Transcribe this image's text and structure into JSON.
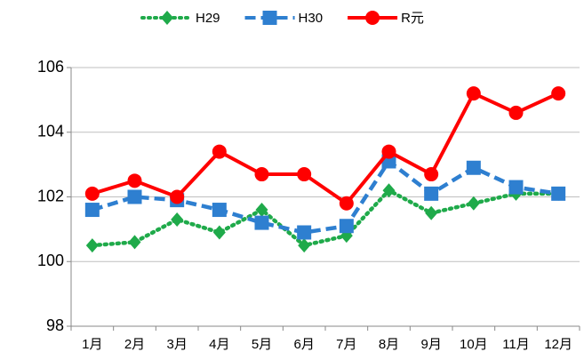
{
  "chart_data": {
    "type": "line",
    "categories": [
      "1月",
      "2月",
      "3月",
      "4月",
      "5月",
      "6月",
      "7月",
      "8月",
      "9月",
      "10月",
      "11月",
      "12月"
    ],
    "series": [
      {
        "name": "H29",
        "color": "#1faa4a",
        "marker": "diamond",
        "line_style": "dotted",
        "values": [
          100.5,
          100.6,
          101.3,
          100.9,
          101.6,
          100.5,
          100.8,
          102.2,
          101.5,
          101.8,
          102.1,
          102.1
        ]
      },
      {
        "name": "H30",
        "color": "#2e7fd0",
        "marker": "square",
        "line_style": "dashed",
        "values": [
          101.6,
          102.0,
          101.9,
          101.6,
          101.2,
          100.9,
          101.1,
          103.1,
          102.1,
          102.9,
          102.3,
          102.1
        ]
      },
      {
        "name": "R元",
        "color": "#ff0000",
        "marker": "circle",
        "line_style": "solid",
        "values": [
          102.1,
          102.5,
          102.0,
          103.4,
          102.7,
          102.7,
          101.8,
          103.4,
          102.7,
          105.2,
          104.6,
          105.2
        ]
      }
    ],
    "ylim": [
      98,
      106
    ],
    "yticks": [
      98,
      100,
      102,
      104,
      106
    ],
    "grid": true,
    "legend": "top"
  }
}
